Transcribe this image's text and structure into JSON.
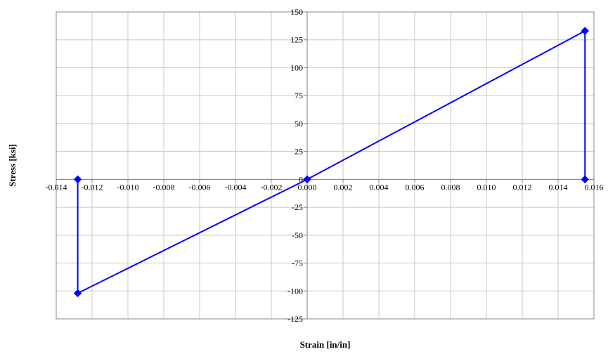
{
  "chart_data": {
    "type": "scatter",
    "title": "",
    "xlabel": "Strain [in/in]",
    "ylabel": "Stress [ksi]",
    "xlim": [
      -0.014,
      0.016
    ],
    "ylim": [
      -125,
      150
    ],
    "x_ticks": [
      -0.014,
      -0.012,
      -0.01,
      -0.008,
      -0.006,
      -0.004,
      -0.002,
      0.0,
      0.002,
      0.004,
      0.006,
      0.008,
      0.01,
      0.012,
      0.014,
      0.016
    ],
    "x_tick_labels": [
      "-0.014",
      "-0.012",
      "-0.010",
      "-0.008",
      "-0.006",
      "-0.004",
      "-0.002",
      "0.000",
      "0.002",
      "0.004",
      "0.006",
      "0.008",
      "0.010",
      "0.012",
      "0.014",
      "0.016"
    ],
    "y_ticks": [
      -125,
      -100,
      -75,
      -50,
      -25,
      0,
      25,
      50,
      75,
      100,
      125,
      150
    ],
    "y_tick_labels": [
      "-125",
      "-100",
      "-75",
      "-50",
      "-25",
      "0",
      "25",
      "50",
      "75",
      "100",
      "125",
      "150"
    ],
    "grid": true,
    "legend": "none",
    "series": [
      {
        "color": "#0000ff",
        "marker": "diamond",
        "lines": true,
        "points": [
          {
            "x": -0.0128,
            "y": 0
          },
          {
            "x": -0.0128,
            "y": -102
          },
          {
            "x": 0.0,
            "y": 0
          },
          {
            "x": 0.0155,
            "y": 133
          },
          {
            "x": 0.0155,
            "y": 0
          }
        ]
      }
    ]
  }
}
